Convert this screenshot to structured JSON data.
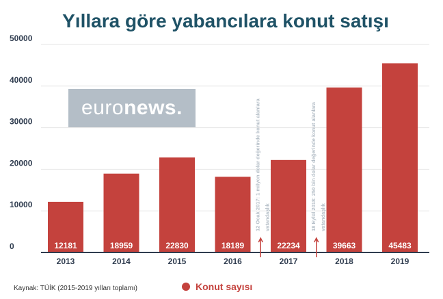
{
  "title": "Yıllara göre yabancılara konut satışı",
  "logo": {
    "part1": "euro",
    "part2": "news",
    "dot": "."
  },
  "source": "Kaynak: TÜİK (2015-2019 yılları toplamı)",
  "colors": {
    "bar": "#c4423d",
    "title": "#1f5266",
    "axis": "#2f3c4f",
    "note": "#b4bec7",
    "logo_bg": "#b4bec7"
  },
  "chart_data": {
    "type": "bar",
    "categories": [
      "2013",
      "2014",
      "2015",
      "2016",
      "2017",
      "2018",
      "2019"
    ],
    "values": [
      12181,
      18959,
      22830,
      18189,
      22234,
      39663,
      45483
    ],
    "ylim": [
      0,
      50000
    ],
    "yticks": [
      0,
      10000,
      20000,
      30000,
      40000,
      50000
    ],
    "legend": "Konut sayısı",
    "grid": true,
    "annotations": [
      {
        "after": "2016",
        "text1": "12 Ocak 2017: 1 milyon dolar değerinde konut alanlara",
        "text2": "vatandaşlık"
      },
      {
        "after": "2017",
        "text1": "18 Eylül 2018: 250 bin dolar değerinde konut alanlara",
        "text2": "vatandaşlık"
      }
    ]
  }
}
